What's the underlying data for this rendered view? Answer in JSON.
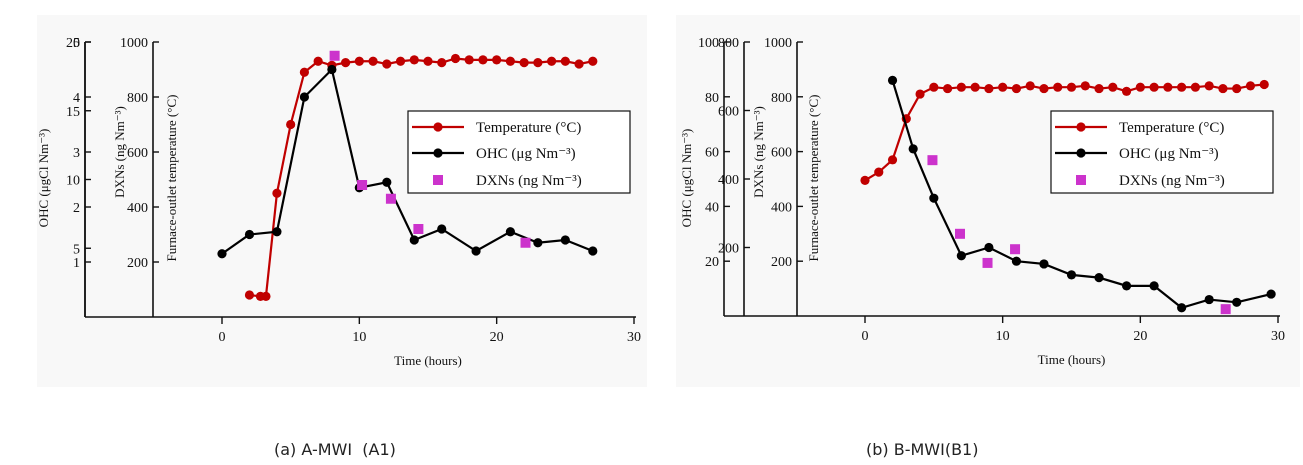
{
  "chart_data": [
    {
      "type": "line",
      "panel_caption": "(a) A-MWI  (A1)",
      "xlabel": "Time (hours)",
      "xlim": [
        0,
        30
      ],
      "xticks": [
        0,
        10,
        20,
        30
      ],
      "axes": [
        {
          "id": "temp",
          "label": "Furnace-outlet temperature (°C)",
          "ylim": [
            0,
            1000
          ],
          "ticks": [
            200,
            400,
            600,
            800,
            1000
          ]
        },
        {
          "id": "dxn",
          "label": "DXNs (ng Nm⁻³)",
          "ylim": [
            0,
            20
          ],
          "ticks": [
            5,
            10,
            15,
            20
          ]
        },
        {
          "id": "ohc",
          "label": "OHC (μgCl Nm⁻³)",
          "ylim": [
            0,
            5
          ],
          "ticks": [
            1,
            2,
            3,
            4,
            5
          ]
        }
      ],
      "series": [
        {
          "name": "Temperature (°C)",
          "axis": "temp",
          "color": "#c00000",
          "marker": "circle",
          "line": true,
          "x": [
            2,
            2.8,
            3.2,
            4,
            5,
            6,
            7,
            8,
            9,
            10,
            11,
            12,
            13,
            14,
            15,
            16,
            17,
            18,
            19,
            20,
            21,
            22,
            23,
            24,
            25,
            26,
            27
          ],
          "y": [
            80,
            75,
            75,
            450,
            700,
            890,
            930,
            915,
            925,
            930,
            930,
            920,
            930,
            935,
            930,
            925,
            940,
            935,
            935,
            935,
            930,
            925,
            925,
            930,
            930,
            920,
            930
          ]
        },
        {
          "name": "OHC (μg Nm⁻³)",
          "axis": "ohc",
          "color": "#000000",
          "marker": "circle",
          "line": true,
          "x": [
            0,
            2,
            4,
            6,
            8,
            10,
            12,
            14,
            16,
            18.5,
            21,
            23,
            25,
            27
          ],
          "y": [
            1.15,
            1.5,
            1.55,
            4.0,
            4.5,
            2.35,
            2.45,
            1.4,
            1.6,
            1.2,
            1.55,
            1.35,
            1.4,
            1.2
          ]
        },
        {
          "name": "DXNs (ng Nm⁻³)",
          "axis": "dxn",
          "color": "#cc33cc",
          "marker": "square",
          "line": false,
          "x": [
            8.2,
            10.2,
            12.3,
            14.3,
            22.1
          ],
          "y": [
            19.0,
            9.6,
            8.6,
            6.4,
            5.4
          ]
        }
      ],
      "legend": "right"
    },
    {
      "type": "line",
      "panel_caption": "(b) B-MWI(B1)",
      "xlabel": "Time (hours)",
      "xlim": [
        0,
        30
      ],
      "xticks": [
        0,
        10,
        20,
        30
      ],
      "axes": [
        {
          "id": "temp",
          "label": "Furnace-outlet temperature (°C)",
          "ylim": [
            0,
            1000
          ],
          "ticks": [
            200,
            400,
            600,
            800,
            1000
          ]
        },
        {
          "id": "dxn",
          "label": "DXNs (ng Nm⁻³)",
          "ylim": [
            0,
            800
          ],
          "ticks": [
            200,
            400,
            600,
            800
          ]
        },
        {
          "id": "ohc",
          "label": "OHC (μgCl Nm⁻³)",
          "ylim": [
            0,
            100
          ],
          "ticks": [
            20,
            40,
            60,
            80,
            100
          ]
        }
      ],
      "series": [
        {
          "name": "Temperature (°C)",
          "axis": "temp",
          "color": "#c00000",
          "marker": "circle",
          "line": true,
          "x": [
            0,
            1,
            2,
            3,
            4,
            5,
            6,
            7,
            8,
            9,
            10,
            11,
            12,
            13,
            14,
            15,
            16,
            17,
            18,
            19,
            20,
            21,
            22,
            23,
            24,
            25,
            26,
            27,
            28,
            29
          ],
          "y": [
            495,
            525,
            570,
            720,
            810,
            835,
            830,
            835,
            835,
            830,
            835,
            830,
            840,
            830,
            835,
            835,
            840,
            830,
            835,
            820,
            835,
            835,
            835,
            835,
            835,
            840,
            830,
            830,
            840,
            845
          ]
        },
        {
          "name": "OHC (μg Nm⁻³)",
          "axis": "ohc",
          "color": "#000000",
          "marker": "circle",
          "line": true,
          "x": [
            2,
            3.5,
            5,
            7,
            9,
            11,
            13,
            15,
            17,
            19,
            21,
            23,
            25,
            27,
            29.5
          ],
          "y": [
            86,
            61,
            43,
            22,
            25,
            20,
            19,
            15,
            14,
            11,
            11,
            3,
            6,
            5,
            8
          ]
        },
        {
          "name": "DXNs (ng Nm⁻³)",
          "axis": "dxn",
          "color": "#cc33cc",
          "marker": "square",
          "line": false,
          "x": [
            4.9,
            6.9,
            8.9,
            10.9,
            26.2
          ],
          "y": [
            455,
            240,
            155,
            195,
            20
          ]
        }
      ],
      "legend": "right"
    }
  ]
}
